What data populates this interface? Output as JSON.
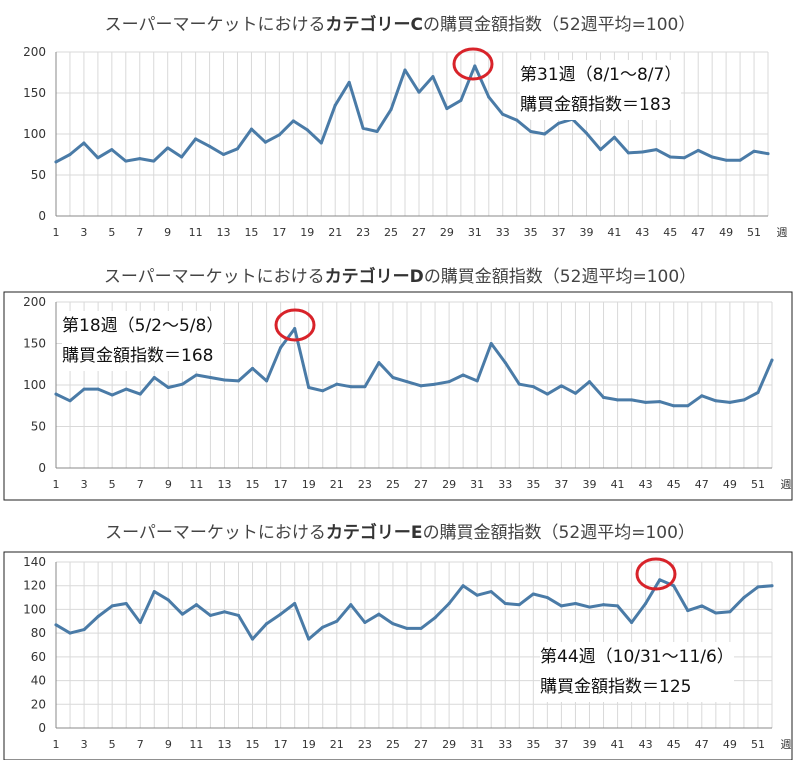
{
  "chart_data": [
    {
      "type": "line",
      "title_prefix": "スーパーマーケットにおける",
      "title_bold": "カテゴリーC",
      "title_suffix": "の購買金額指数（52週平均=100）",
      "x_unit": "週",
      "x_ticks": [
        "1",
        "3",
        "5",
        "7",
        "9",
        "11",
        "13",
        "15",
        "17",
        "19",
        "21",
        "23",
        "25",
        "27",
        "29",
        "31",
        "33",
        "35",
        "37",
        "39",
        "41",
        "43",
        "45",
        "47",
        "49",
        "51"
      ],
      "y_ticks": [
        "0",
        "50",
        "100",
        "150",
        "200"
      ],
      "ylim": [
        0,
        200
      ],
      "xlim": [
        1,
        52
      ],
      "grid": true,
      "line_color": "#4a7ba7",
      "highlight_color": "#d8232a",
      "highlight_week": 31,
      "x": [
        1,
        2,
        3,
        4,
        5,
        6,
        7,
        8,
        9,
        10,
        11,
        12,
        13,
        14,
        15,
        16,
        17,
        18,
        19,
        20,
        21,
        22,
        23,
        24,
        25,
        26,
        27,
        28,
        29,
        30,
        31,
        32,
        33,
        34,
        35,
        36,
        37,
        38,
        39,
        40,
        41,
        42,
        43,
        44,
        45,
        46,
        47,
        48,
        49,
        50,
        51,
        52
      ],
      "values": [
        66,
        75,
        89,
        71,
        81,
        67,
        70,
        67,
        83,
        72,
        94,
        85,
        75,
        82,
        106,
        90,
        99,
        116,
        105,
        89,
        135,
        163,
        107,
        103,
        130,
        178,
        151,
        170,
        131,
        141,
        183,
        145,
        124,
        117,
        103,
        100,
        113,
        118,
        101,
        81,
        96,
        77,
        78,
        81,
        72,
        71,
        80,
        72,
        68,
        68,
        79,
        76
      ],
      "callout_line1": "第31週（8/1～8/7）",
      "callout_line2": "購買金額指数＝183"
    },
    {
      "type": "line",
      "title_prefix": "スーパーマーケットにおける",
      "title_bold": "カテゴリーD",
      "title_suffix": "の購買金額指数（52週平均=100）",
      "x_unit": "週",
      "x_ticks": [
        "1",
        "3",
        "5",
        "7",
        "9",
        "11",
        "13",
        "15",
        "17",
        "19",
        "21",
        "23",
        "25",
        "27",
        "29",
        "31",
        "33",
        "35",
        "37",
        "39",
        "41",
        "43",
        "45",
        "47",
        "49",
        "51"
      ],
      "y_ticks": [
        "0",
        "50",
        "100",
        "150",
        "200"
      ],
      "ylim": [
        0,
        200
      ],
      "xlim": [
        1,
        52
      ],
      "grid": true,
      "line_color": "#4a7ba7",
      "highlight_color": "#d8232a",
      "highlight_week": 18,
      "x": [
        1,
        2,
        3,
        4,
        5,
        6,
        7,
        8,
        9,
        10,
        11,
        12,
        13,
        14,
        15,
        16,
        17,
        18,
        19,
        20,
        21,
        22,
        23,
        24,
        25,
        26,
        27,
        28,
        29,
        30,
        31,
        32,
        33,
        34,
        35,
        36,
        37,
        38,
        39,
        40,
        41,
        42,
        43,
        44,
        45,
        46,
        47,
        48,
        49,
        50,
        51,
        52
      ],
      "values": [
        89,
        81,
        95,
        95,
        88,
        95,
        89,
        109,
        97,
        101,
        112,
        109,
        106,
        105,
        120,
        105,
        145,
        168,
        97,
        93,
        101,
        98,
        98,
        127,
        109,
        104,
        99,
        101,
        104,
        112,
        105,
        150,
        127,
        101,
        98,
        89,
        99,
        90,
        104,
        85,
        82,
        82,
        79,
        80,
        75,
        75,
        87,
        81,
        79,
        82,
        91,
        130
      ],
      "callout_line1": "第18週（5/2～5/8）",
      "callout_line2": "購買金額指数＝168"
    },
    {
      "type": "line",
      "title_prefix": "スーパーマーケットにおける",
      "title_bold": "カテゴリーE",
      "title_suffix": "の購買金額指数（52週平均=100）",
      "x_unit": "週",
      "x_ticks": [
        "1",
        "3",
        "5",
        "7",
        "9",
        "11",
        "13",
        "15",
        "17",
        "19",
        "21",
        "23",
        "25",
        "27",
        "29",
        "31",
        "33",
        "35",
        "37",
        "39",
        "41",
        "43",
        "45",
        "47",
        "49",
        "51"
      ],
      "y_ticks": [
        "0",
        "20",
        "40",
        "60",
        "80",
        "100",
        "120",
        "140"
      ],
      "ylim": [
        0,
        140
      ],
      "xlim": [
        1,
        52
      ],
      "grid": true,
      "line_color": "#4a7ba7",
      "highlight_color": "#d8232a",
      "highlight_week": 44,
      "x": [
        1,
        2,
        3,
        4,
        5,
        6,
        7,
        8,
        9,
        10,
        11,
        12,
        13,
        14,
        15,
        16,
        17,
        18,
        19,
        20,
        21,
        22,
        23,
        24,
        25,
        26,
        27,
        28,
        29,
        30,
        31,
        32,
        33,
        34,
        35,
        36,
        37,
        38,
        39,
        40,
        41,
        42,
        43,
        44,
        45,
        46,
        47,
        48,
        49,
        50,
        51,
        52
      ],
      "values": [
        87,
        80,
        83,
        94,
        103,
        105,
        89,
        115,
        108,
        96,
        104,
        95,
        98,
        95,
        75,
        88,
        96,
        105,
        75,
        85,
        90,
        104,
        89,
        96,
        88,
        84,
        84,
        93,
        105,
        120,
        112,
        115,
        105,
        104,
        113,
        110,
        103,
        105,
        102,
        104,
        103,
        89,
        105,
        125,
        120,
        99,
        103,
        97,
        98,
        110,
        119,
        120
      ],
      "callout_line1": "第44週（10/31～11/6）",
      "callout_line2": "購買金額指数＝125"
    }
  ]
}
